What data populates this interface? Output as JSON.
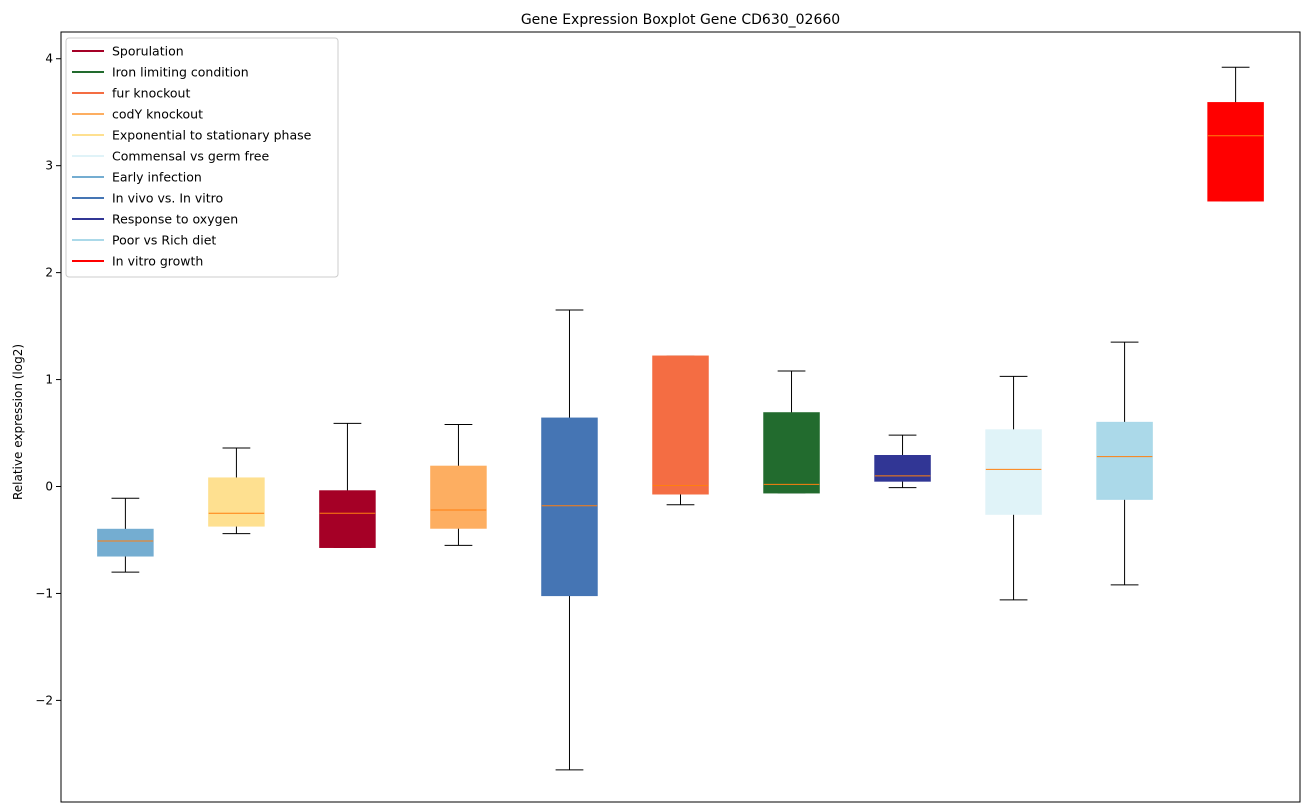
{
  "chart_data": {
    "type": "boxplot",
    "title": "Gene Expression Boxplot Gene CD630_02660",
    "xlabel": "",
    "ylabel": "Relative expression (log2)",
    "ylim": [
      -2.95,
      4.25
    ],
    "yticks": [
      -2,
      -1,
      0,
      1,
      2,
      3,
      4
    ],
    "ytick_labels": [
      "−2",
      "−1",
      "0",
      "1",
      "2",
      "3",
      "4"
    ],
    "grid": false,
    "legend_position": "top-left",
    "median_color": "#ff7f0e",
    "whisker_color": "#000000",
    "legend": [
      {
        "label": "Sporulation",
        "color": "#a50026"
      },
      {
        "label": "Iron limiting condition",
        "color": "#226b2e"
      },
      {
        "label": "fur knockout",
        "color": "#f46d43"
      },
      {
        "label": "codY knockout",
        "color": "#fdae61"
      },
      {
        "label": "Exponential to stationary phase",
        "color": "#fee090"
      },
      {
        "label": "Commensal vs germ free",
        "color": "#e0f3f8"
      },
      {
        "label": "Early infection",
        "color": "#74add1"
      },
      {
        "label": "In vivo vs. In vitro",
        "color": "#4575b4"
      },
      {
        "label": "Response to oxygen",
        "color": "#313695"
      },
      {
        "label": "Poor vs Rich diet",
        "color": "#abd9e9"
      },
      {
        "label": "In vitro growth",
        "color": "#ff0000"
      }
    ],
    "boxes": [
      {
        "condition": "Early infection",
        "color": "#74add1",
        "whisker_low": -0.8,
        "q1": -0.65,
        "median": -0.51,
        "q3": -0.4,
        "whisker_high": -0.11
      },
      {
        "condition": "Exponential to stationary phase",
        "color": "#fee090",
        "whisker_low": -0.44,
        "q1": -0.37,
        "median": -0.25,
        "q3": 0.08,
        "whisker_high": 0.36
      },
      {
        "condition": "Sporulation",
        "color": "#a50026",
        "whisker_low": -0.57,
        "q1": -0.57,
        "median": -0.25,
        "q3": -0.04,
        "whisker_high": 0.59
      },
      {
        "condition": "codY knockout",
        "color": "#fdae61",
        "whisker_low": -0.55,
        "q1": -0.39,
        "median": -0.22,
        "q3": 0.19,
        "whisker_high": 0.58
      },
      {
        "condition": "In vivo vs. In vitro",
        "color": "#4575b4",
        "whisker_low": -2.65,
        "q1": -1.02,
        "median": -0.18,
        "q3": 0.64,
        "whisker_high": 1.65
      },
      {
        "condition": "fur knockout",
        "color": "#f46d43",
        "whisker_low": -0.17,
        "q1": -0.07,
        "median": 0.01,
        "q3": 1.22,
        "whisker_high": 1.22
      },
      {
        "condition": "Iron limiting condition",
        "color": "#226b2e",
        "whisker_low": -0.06,
        "q1": -0.06,
        "median": 0.02,
        "q3": 0.69,
        "whisker_high": 1.08
      },
      {
        "condition": "Response to oxygen",
        "color": "#313695",
        "whisker_low": -0.01,
        "q1": 0.05,
        "median": 0.1,
        "q3": 0.29,
        "whisker_high": 0.48
      },
      {
        "condition": "Commensal vs germ free",
        "color": "#e0f3f8",
        "whisker_low": -1.06,
        "q1": -0.26,
        "median": 0.16,
        "q3": 0.53,
        "whisker_high": 1.03
      },
      {
        "condition": "Poor vs Rich diet",
        "color": "#abd9e9",
        "whisker_low": -0.92,
        "q1": -0.12,
        "median": 0.28,
        "q3": 0.6,
        "whisker_high": 1.35
      },
      {
        "condition": "In vitro growth",
        "color": "#ff0000",
        "whisker_low": 2.67,
        "q1": 2.67,
        "median": 3.28,
        "q3": 3.59,
        "whisker_high": 3.92
      }
    ]
  }
}
